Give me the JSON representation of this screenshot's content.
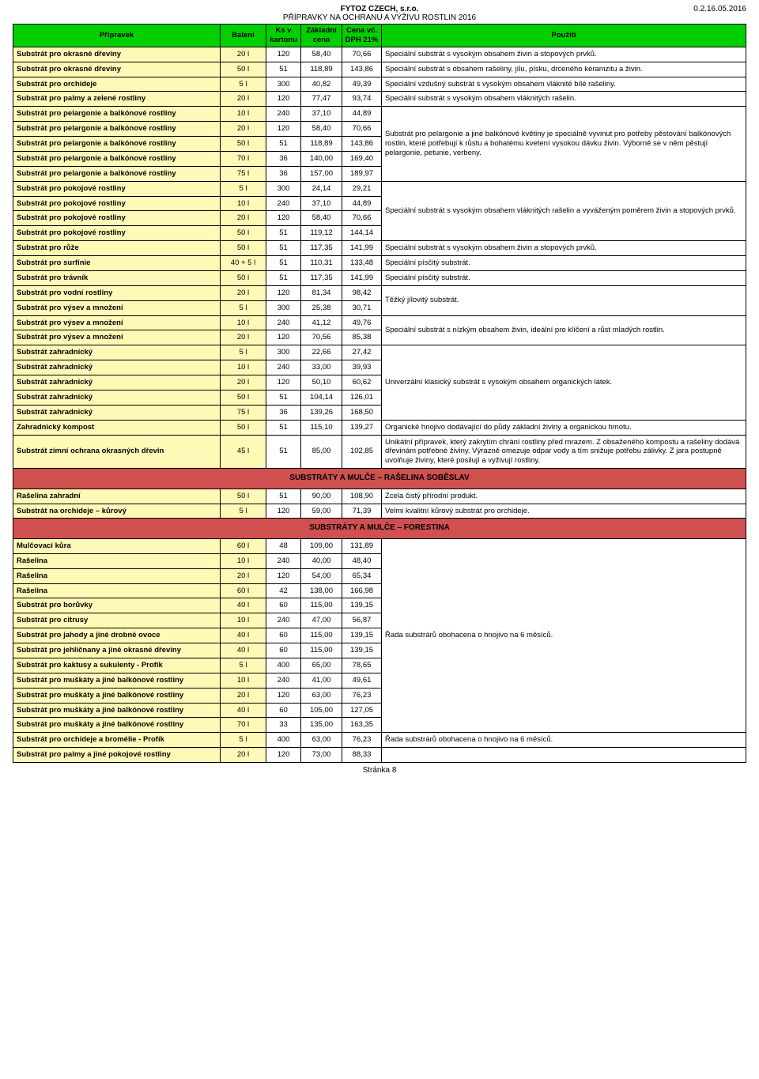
{
  "header": {
    "company": "FYTOZ CZECH, s.r.o.",
    "subtitle": "PŘÍPRAVKY NA OCHRANU A VÝŽIVU ROSTLIN 2016",
    "docnum": "0.2.16.05.2016"
  },
  "columns": {
    "pripravek": "Přípravek",
    "baleni": "Balení",
    "ks": "Ks v kartonu",
    "zc": "Základní cena",
    "cena": "Cena vč. DPH 21%",
    "pouziti": "Použití"
  },
  "sections": [
    {
      "title": null,
      "rows": [
        {
          "name": "Substrát pro okrasné dřeviny",
          "bal": "20 l",
          "ks": "120",
          "zc": "58,40",
          "c": "70,66",
          "use": "Speciální substrát s vysokým obsahem živin a stopových prvků."
        },
        {
          "name": "Substrát pro okrasné dřeviny",
          "bal": "50 l",
          "ks": "51",
          "zc": "118,89",
          "c": "143,86",
          "use": "Speciální substrát s obsahem rašeliny, jílu, písku, drceného keramzitu a živin."
        },
        {
          "name": "Substrát pro orchideje",
          "bal": "5 l",
          "ks": "300",
          "zc": "40,82",
          "c": "49,39",
          "use": "Speciální vzdušný substrát s vysokým obsahem vláknité bílé rašeliny."
        },
        {
          "name": "Substrát pro palmy a zelené rostliny",
          "bal": "20 l",
          "ks": "120",
          "zc": "77,47",
          "c": "93,74",
          "use": "Speciální substrát s vysokým obsahem vláknitých rašelin."
        },
        {
          "name": "Substrát pro pelargonie a balkónové rostliny",
          "bal": "10 l",
          "ks": "240",
          "zc": "37,10",
          "c": "44,89",
          "use_span_start": 5,
          "use": "Substrát pro pelargonie a jiné balkónové květiny je speciálně vyvinut pro potřeby pěstování balkónových rostlin, které potřebují k růstu a bohatému kvetení vysokou dávku živin. Výborně se v něm pěstují pelargonie, petunie, verbeny."
        },
        {
          "name": "Substrát pro pelargonie a balkónové rostliny",
          "bal": "20 l",
          "ks": "120",
          "zc": "58,40",
          "c": "70,66"
        },
        {
          "name": "Substrát pro pelargonie a balkónové rostliny",
          "bal": "50 l",
          "ks": "51",
          "zc": "118,89",
          "c": "143,86"
        },
        {
          "name": "Substrát pro pelargonie a balkónové rostliny",
          "bal": "70 l",
          "ks": "36",
          "zc": "140,00",
          "c": "169,40"
        },
        {
          "name": "Substrát pro pelargonie a balkónové rostliny",
          "bal": "75 l",
          "ks": "36",
          "zc": "157,00",
          "c": "189,97"
        },
        {
          "name": "Substrát pro pokojové rostliny",
          "bal": "5 l",
          "ks": "300",
          "zc": "24,14",
          "c": "29,21",
          "use_span_start": 4,
          "use": "Speciální substrát s vysokým obsahem vláknitých rašelin a vyváženým poměrem živin a stopových prvků."
        },
        {
          "name": "Substrát pro pokojové rostliny",
          "bal": "10 l",
          "ks": "240",
          "zc": "37,10",
          "c": "44,89"
        },
        {
          "name": "Substrát pro pokojové rostliny",
          "bal": "20 l",
          "ks": "120",
          "zc": "58,40",
          "c": "70,66"
        },
        {
          "name": "Substrát pro pokojové rostliny",
          "bal": "50 l",
          "ks": "51",
          "zc": "119,12",
          "c": "144,14"
        },
        {
          "name": "Substrát pro růže",
          "bal": "50 l",
          "ks": "51",
          "zc": "117,35",
          "c": "141,99",
          "use": "Speciální substrát s vysokým obsahem živin a stopových prvků."
        },
        {
          "name": "Substrát pro surfínie",
          "bal": "40 + 5 l",
          "ks": "51",
          "zc": "110,31",
          "c": "133,48",
          "use": "Speciální písčitý substrát."
        },
        {
          "name": "Substrát pro trávník",
          "bal": "50 l",
          "ks": "51",
          "zc": "117,35",
          "c": "141,99",
          "use": "Speciální písčitý substrát."
        },
        {
          "name": "Substrát pro vodní rostliny",
          "bal": "20 l",
          "ks": "120",
          "zc": "81,34",
          "c": "98,42",
          "use_span_start": 2,
          "use": "Těžký jílovitý substrát."
        },
        {
          "name": "Substrát pro výsev a množení",
          "bal": "5 l",
          "ks": "300",
          "zc": "25,38",
          "c": "30,71"
        },
        {
          "name": "Substrát pro výsev a množení",
          "bal": "10 l",
          "ks": "240",
          "zc": "41,12",
          "c": "49,76",
          "use_span_start": 2,
          "use": "Speciální substrát s nízkým obsahem živin, ideální pro klíčení a růst mladých rostlin."
        },
        {
          "name": "Substrát pro výsev a množení",
          "bal": "20 l",
          "ks": "120",
          "zc": "70,56",
          "c": "85,38"
        },
        {
          "name": "Substrát zahradnický",
          "bal": "5 l",
          "ks": "300",
          "zc": "22,66",
          "c": "27,42",
          "use_span_start": 5,
          "use": "Univerzální klasický substrát s vysokým obsahem organických látek."
        },
        {
          "name": "Substrát zahradnický",
          "bal": "10 l",
          "ks": "240",
          "zc": "33,00",
          "c": "39,93"
        },
        {
          "name": "Substrát zahradnický",
          "bal": "20 l",
          "ks": "120",
          "zc": "50,10",
          "c": "60,62"
        },
        {
          "name": "Substrát zahradnický",
          "bal": "50 l",
          "ks": "51",
          "zc": "104,14",
          "c": "126,01"
        },
        {
          "name": "Substrát zahradnický",
          "bal": "75 l",
          "ks": "36",
          "zc": "139,26",
          "c": "168,50"
        },
        {
          "name": "Zahradnický kompost",
          "bal": "50 l",
          "ks": "51",
          "zc": "115,10",
          "c": "139,27",
          "use": "Organické hnojivo dodávající do půdy základní živiny a organickou hmotu."
        },
        {
          "name": "Substrát zimní ochrana okrasných dřevin",
          "bal": "45 l",
          "ks": "51",
          "zc": "85,00",
          "c": "102,85",
          "use": "Unikátní přípravek, který zakrytím chrání rostliny před mrazem. Z obsaženého kompostu a rašeliny dodává dřevinám potřebné živiny. Výrazně omezuje odpar vody a tím snižuje potřebu zálivky. Z jara postupně uvolňuje živiny, které posilují a vyživují rostliny."
        }
      ]
    },
    {
      "title": "SUBSTRÁTY A MULČE – RAŠELINA SOBĚSLAV",
      "rows": [
        {
          "name": "Rašelina zahradní",
          "bal": "50 l",
          "ks": "51",
          "zc": "90,00",
          "c": "108,90",
          "use": "Zcela čistý přírodní produkt."
        },
        {
          "name": "Substrát na orchideje – kůrový",
          "bal": "5 l",
          "ks": "120",
          "zc": "59,00",
          "c": "71,39",
          "use": "Velmi kvalitní kůrový substrát pro orchideje."
        }
      ]
    },
    {
      "title": "SUBSTRÁTY A MULČE – FORESTINA",
      "rows": [
        {
          "name": "Mulčovací kůra",
          "bal": "60 l",
          "ks": "48",
          "zc": "109,00",
          "c": "131,89",
          "use_span_start": 13,
          "use": "Řada substrárů obohacena o hnojivo na 6 měsíců."
        },
        {
          "name": "Rašelina",
          "bal": "10 l",
          "ks": "240",
          "zc": "40,00",
          "c": "48,40"
        },
        {
          "name": "Rašelina",
          "bal": "20 l",
          "ks": "120",
          "zc": "54,00",
          "c": "65,34"
        },
        {
          "name": "Rašelina",
          "bal": "60 l",
          "ks": "42",
          "zc": "138,00",
          "c": "166,98"
        },
        {
          "name": "Substrát pro borůvky",
          "bal": "40 l",
          "ks": "60",
          "zc": "115,00",
          "c": "139,15"
        },
        {
          "name": "Substrát pro citrusy",
          "bal": "10 l",
          "ks": "240",
          "zc": "47,00",
          "c": "56,87"
        },
        {
          "name": "Substrát pro jahody a jiné drobné ovoce",
          "bal": "40 l",
          "ks": "60",
          "zc": "115,00",
          "c": "139,15"
        },
        {
          "name": "Substrát pro jehličnany a jiné okrasné dřeviny",
          "bal": "40 l",
          "ks": "60",
          "zc": "115,00",
          "c": "139,15"
        },
        {
          "name": "Substrát pro kaktusy a sukulenty - Profík",
          "bal": "5 l",
          "ks": "400",
          "zc": "65,00",
          "c": "78,65"
        },
        {
          "name": "Substrát pro muškáty a jiné balkónové rostliny",
          "bal": "10 l",
          "ks": "240",
          "zc": "41,00",
          "c": "49,61"
        },
        {
          "name": "Substrát pro muškáty a jiné balkónové rostliny",
          "bal": "20 l",
          "ks": "120",
          "zc": "63,00",
          "c": "76,23"
        },
        {
          "name": "Substrát pro muškáty a jiné balkónové rostliny",
          "bal": "40 l",
          "ks": "60",
          "zc": "105,00",
          "c": "127,05"
        },
        {
          "name": "Substrát pro muškáty a jiné balkónové rostliny",
          "bal": "70 l",
          "ks": "33",
          "zc": "135,00",
          "c": "163,35"
        },
        {
          "name": "Substrát pro orchideje a bromélie - Profík",
          "bal": "5 l",
          "ks": "400",
          "zc": "63,00",
          "c": "76,23",
          "use": "Řada substrárů obohacena o hnojivo na 6 měsíců."
        },
        {
          "name": "Substrát pro palmy a jiné pokojové rostliny",
          "bal": "20 l",
          "ks": "120",
          "zc": "73,00",
          "c": "88,33",
          "use": ""
        }
      ]
    }
  ],
  "footer": "Stránka 8",
  "colors": {
    "header_bg": "#00d000",
    "section_bg": "#d05050",
    "name_bg": "#fff9b8",
    "border": "#000000"
  }
}
